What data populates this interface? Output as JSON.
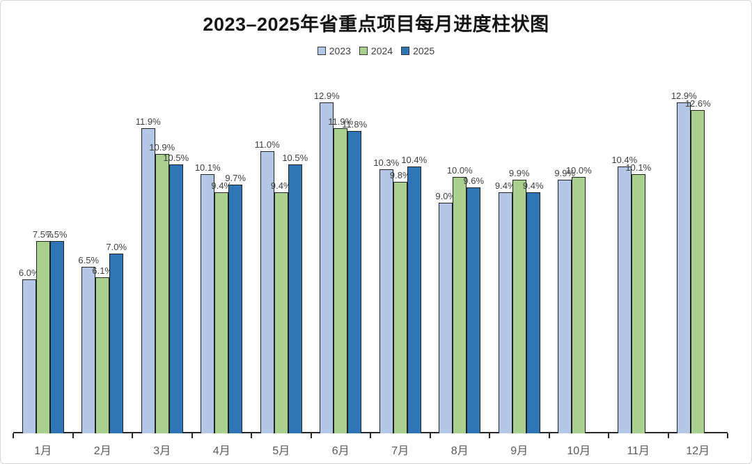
{
  "chart_data": {
    "type": "bar",
    "title": "2023–2025年省重点项目每月进度柱状图",
    "value_suffix": "%",
    "grid": false,
    "legend_position": "top",
    "ylim": [
      0,
      13.5
    ],
    "categories": [
      "1月",
      "2月",
      "3月",
      "4月",
      "5月",
      "6月",
      "7月",
      "8月",
      "9月",
      "10月",
      "11月",
      "12月"
    ],
    "series": [
      {
        "name": "2023",
        "color": "#b4c7e7",
        "values": [
          6.0,
          6.5,
          11.9,
          10.1,
          11.0,
          12.9,
          10.3,
          9.0,
          9.4,
          9.9,
          10.4,
          12.9
        ]
      },
      {
        "name": "2024",
        "color": "#a9d08e",
        "values": [
          7.5,
          6.1,
          10.9,
          9.4,
          9.4,
          11.9,
          9.8,
          10.0,
          9.9,
          10.0,
          10.1,
          12.6
        ]
      },
      {
        "name": "2025",
        "color": "#2e75b6",
        "values": [
          7.5,
          7.0,
          10.5,
          9.7,
          10.5,
          11.8,
          10.4,
          9.6,
          9.4,
          null,
          null,
          null
        ]
      }
    ]
  }
}
